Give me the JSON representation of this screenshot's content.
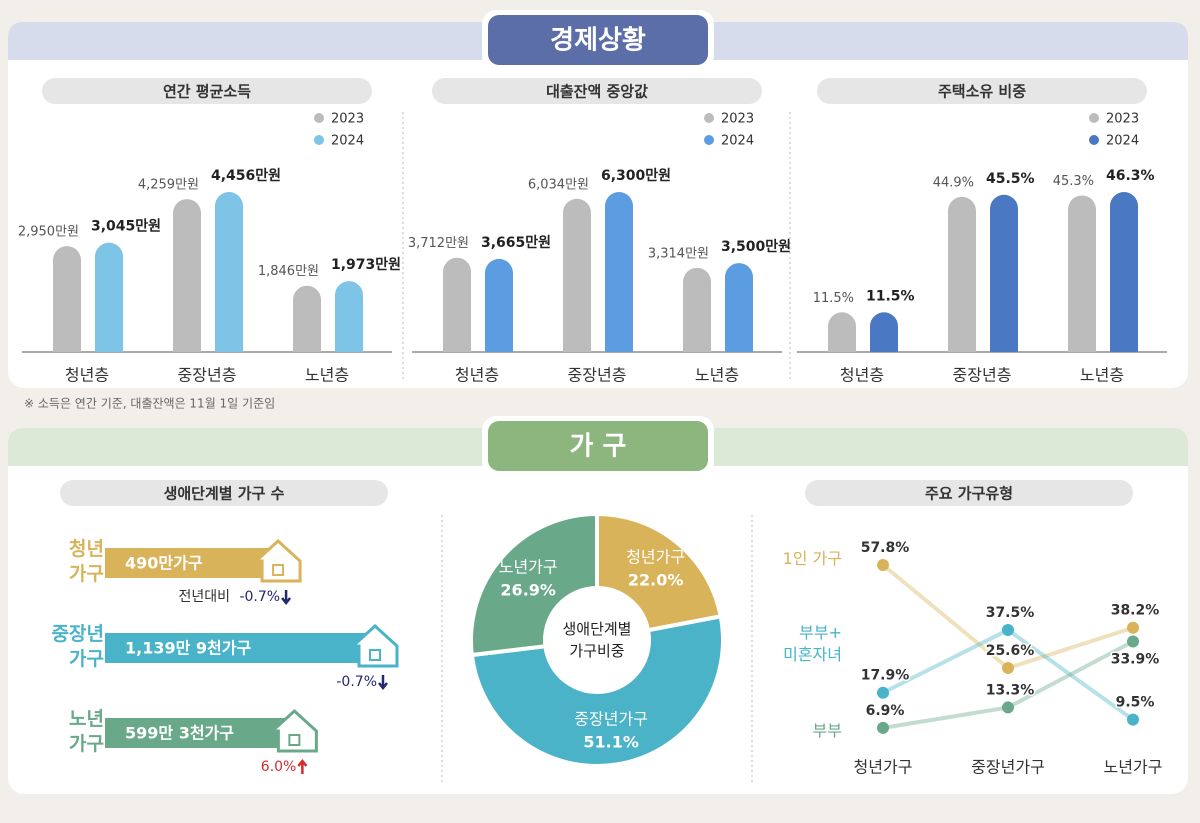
{
  "sections": [
    {
      "title": "경제상황"
    },
    {
      "title": "가 구"
    }
  ],
  "footnote": "※ 소득은 연간 기준, 대출잔액은 11월 1일 기준임",
  "chart_data": [
    {
      "type": "bar",
      "title": "연간 평균소득",
      "categories": [
        "청년층",
        "중장년층",
        "노년층"
      ],
      "series": [
        {
          "name": "2023",
          "color": "#bcbcbc",
          "values": [
            2950,
            4259,
            1846
          ],
          "value_labels": [
            "2,950만원",
            "4,259만원",
            "1,846만원"
          ]
        },
        {
          "name": "2024",
          "color": "#7ec4e6",
          "values": [
            3045,
            4456,
            1973
          ],
          "value_labels": [
            "3,045만원",
            "4,456만원",
            "1,973만원"
          ]
        }
      ]
    },
    {
      "type": "bar",
      "title": "대출잔액 중앙값",
      "categories": [
        "청년층",
        "중장년층",
        "노년층"
      ],
      "series": [
        {
          "name": "2023",
          "color": "#bcbcbc",
          "values": [
            3712,
            6034,
            3314
          ],
          "value_labels": [
            "3,712만원",
            "6,034만원",
            "3,314만원"
          ]
        },
        {
          "name": "2024",
          "color": "#5b9de0",
          "values": [
            3665,
            6300,
            3500
          ],
          "value_labels": [
            "3,665만원",
            "6,300만원",
            "3,500만원"
          ]
        }
      ]
    },
    {
      "type": "bar",
      "title": "주택소유 비중",
      "categories": [
        "청년층",
        "중장년층",
        "노년층"
      ],
      "series": [
        {
          "name": "2023",
          "color": "#bcbcbc",
          "values": [
            11.5,
            44.9,
            45.3
          ],
          "value_labels": [
            "11.5%",
            "44.9%",
            "45.3%"
          ]
        },
        {
          "name": "2024",
          "color": "#4a78c2",
          "values": [
            11.5,
            45.5,
            46.3
          ],
          "value_labels": [
            "11.5%",
            "45.5%",
            "46.3%"
          ]
        }
      ]
    },
    {
      "type": "hbar",
      "title": "생애단계별 가구 수",
      "categories": [
        "청년 가구",
        "중장년 가구",
        "노년 가구"
      ],
      "colors": [
        "#d9b35a",
        "#49b3c9",
        "#6aa88a"
      ],
      "values": [
        490,
        1139.9,
        599.3
      ],
      "value_labels": [
        "490만가구",
        "1,139만 9천가구",
        "599만 3천가구"
      ],
      "change": {
        "name": "전년대비",
        "values": [
          -0.7,
          -0.7,
          6.0
        ],
        "value_labels": [
          "-0.7%",
          "-0.7%",
          "6.0%"
        ]
      }
    },
    {
      "type": "pie",
      "center_label": "생애단계별 가구비중",
      "categories": [
        "청년가구",
        "중장년가구",
        "노년가구"
      ],
      "values": [
        22.0,
        51.1,
        26.9
      ],
      "value_labels": [
        "22.0%",
        "51.1%",
        "26.9%"
      ],
      "colors": [
        "#d9b35a",
        "#4bb3c8",
        "#6aa88a"
      ]
    },
    {
      "type": "line",
      "title": "주요 가구유형",
      "categories": [
        "청년가구",
        "중장년가구",
        "노년가구"
      ],
      "series": [
        {
          "name": "1인 가구",
          "color": "#d9b35a",
          "values": [
            57.8,
            25.6,
            38.2
          ],
          "value_labels": [
            "57.8%",
            "25.6%",
            "38.2%"
          ]
        },
        {
          "name": "부부+ 미혼자녀",
          "color": "#49b3c9",
          "values": [
            17.9,
            37.5,
            9.5
          ],
          "value_labels": [
            "17.9%",
            "37.5%",
            "9.5%"
          ]
        },
        {
          "name": "부부",
          "color": "#6aa88a",
          "values": [
            6.9,
            13.3,
            33.9
          ],
          "value_labels": [
            "6.9%",
            "13.3%",
            "33.9%"
          ]
        }
      ]
    }
  ]
}
